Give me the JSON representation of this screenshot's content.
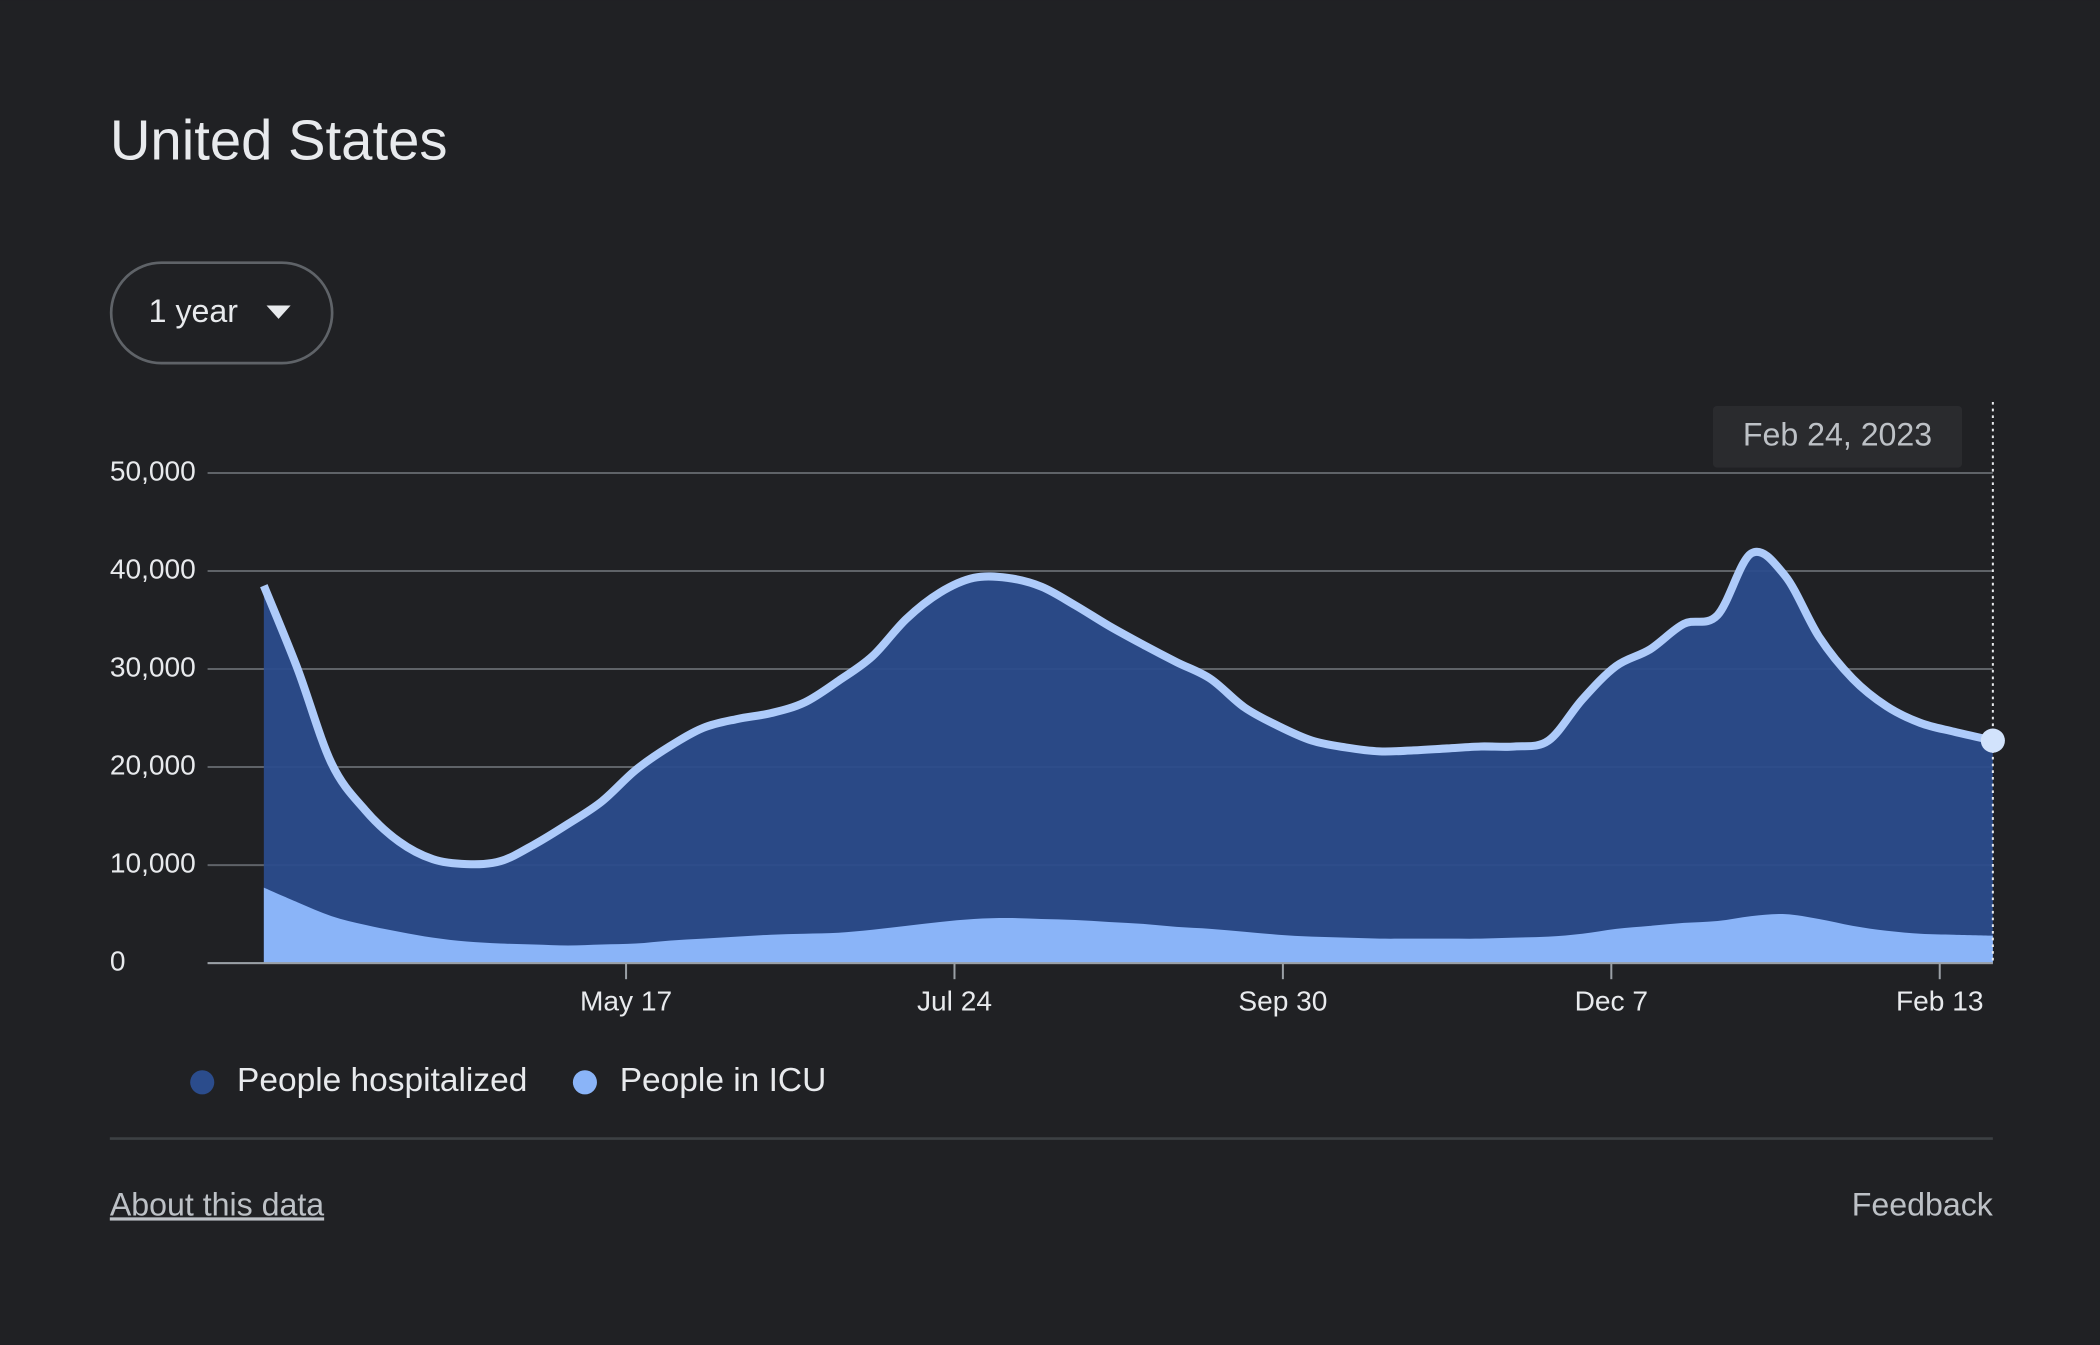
{
  "header": {
    "title": "United States"
  },
  "controls": {
    "range": "1 year"
  },
  "chart_data": {
    "type": "area",
    "tooltip": "Feb 24, 2023",
    "x": [
      "Mar 3",
      "Mar 10",
      "Mar 17",
      "Mar 24",
      "Mar 31",
      "Apr 7",
      "Apr 14",
      "Apr 21",
      "Apr 28",
      "May 5",
      "May 12",
      "May 19",
      "May 26",
      "Jun 2",
      "Jun 9",
      "Jun 16",
      "Jun 23",
      "Jun 30",
      "Jul 7",
      "Jul 14",
      "Jul 21",
      "Jul 28",
      "Aug 4",
      "Aug 11",
      "Aug 18",
      "Aug 25",
      "Sep 1",
      "Sep 8",
      "Sep 15",
      "Sep 22",
      "Sep 29",
      "Oct 6",
      "Oct 13",
      "Oct 20",
      "Oct 27",
      "Nov 3",
      "Nov 10",
      "Nov 17",
      "Nov 24",
      "Dec 1",
      "Dec 8",
      "Dec 15",
      "Dec 22",
      "Dec 29",
      "Jan 5",
      "Jan 12",
      "Jan 19",
      "Jan 26",
      "Feb 2",
      "Feb 9",
      "Feb 16",
      "Feb 24"
    ],
    "series": [
      {
        "name": "People hospitalized",
        "color": "#2b4c8c",
        "values": [
          38500,
          30000,
          20400,
          15600,
          12400,
          10600,
          10100,
          10400,
          12100,
          14200,
          16500,
          19700,
          22100,
          24000,
          24900,
          25500,
          26600,
          28800,
          31300,
          35100,
          37800,
          39300,
          39300,
          38400,
          36500,
          34400,
          32500,
          30700,
          29000,
          26100,
          24200,
          22700,
          22000,
          21600,
          21700,
          21900,
          22100,
          22100,
          22700,
          26900,
          30300,
          32000,
          34600,
          35500,
          41800,
          39500,
          33300,
          29000,
          26200,
          24500,
          23600,
          22700
        ]
      },
      {
        "name": "People in ICU",
        "color": "#8ab4f8",
        "values": [
          7700,
          6200,
          4800,
          3900,
          3200,
          2600,
          2200,
          2000,
          1900,
          1800,
          1900,
          2000,
          2300,
          2500,
          2700,
          2900,
          3000,
          3100,
          3400,
          3800,
          4200,
          4500,
          4600,
          4500,
          4400,
          4200,
          4000,
          3700,
          3500,
          3200,
          2900,
          2700,
          2600,
          2500,
          2500,
          2500,
          2500,
          2600,
          2700,
          3000,
          3500,
          3800,
          4100,
          4300,
          4800,
          5000,
          4500,
          3800,
          3300,
          3000,
          2900,
          2800
        ]
      }
    ],
    "xlim": [
      "Mar 3",
      "Feb 24"
    ],
    "xticks": [
      "May 17",
      "Jul 24",
      "Sep 30",
      "Dec 7",
      "Feb 13"
    ],
    "ylim": [
      0,
      50000
    ],
    "yticks": [
      0,
      {
        "value": 10000,
        "label": "10,000"
      },
      {
        "value": 20000,
        "label": "20,000"
      },
      {
        "value": 30000,
        "label": "30,000"
      },
      {
        "value": 40000,
        "label": "40,000"
      },
      {
        "value": 50000,
        "label": "50,000"
      }
    ],
    "grid": true
  },
  "footer": {
    "about": "About this data",
    "feedback": "Feedback"
  }
}
